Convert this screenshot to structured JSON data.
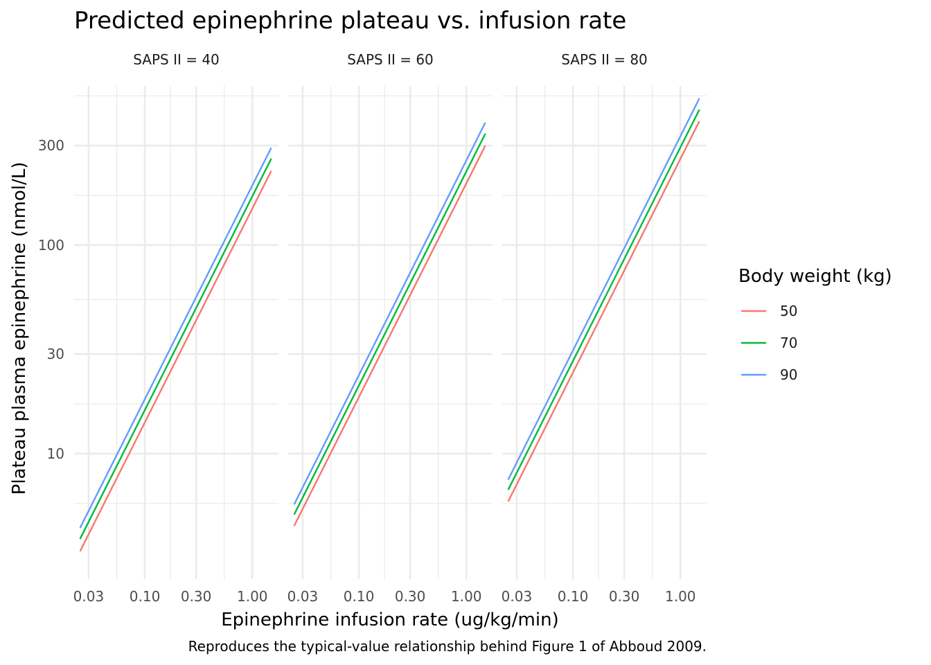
{
  "chart_data": {
    "type": "line",
    "title": "Predicted epinephrine plateau vs. infusion rate",
    "xlabel": "Epinephrine infusion rate (ug/kg/min)",
    "ylabel": "Plateau plasma epinephrine (nmol/L)",
    "caption": "Reproduces the typical-value relationship behind Figure 1 of Abboud 2009.",
    "x_scale": "log10",
    "y_scale": "log10",
    "xlim": [
      0.022,
      1.75
    ],
    "ylim": [
      2.5,
      580
    ],
    "x_ticks": [
      {
        "value": 0.03,
        "label": "0.03"
      },
      {
        "value": 0.1,
        "label": "0.10"
      },
      {
        "value": 0.3,
        "label": "0.30"
      },
      {
        "value": 1.0,
        "label": "1.00"
      }
    ],
    "y_ticks": [
      {
        "value": 10,
        "label": "10"
      },
      {
        "value": 30,
        "label": "30"
      },
      {
        "value": 100,
        "label": "100"
      },
      {
        "value": 300,
        "label": "300"
      }
    ],
    "grid": true,
    "legend": {
      "title": "Body weight (kg)",
      "position": "right",
      "entries": [
        {
          "label": "50",
          "color": "#F8766D"
        },
        {
          "label": "70",
          "color": "#00BA38"
        },
        {
          "label": "90",
          "color": "#619CFF"
        }
      ]
    },
    "panels": [
      {
        "strip": "SAPS II = 40",
        "series": [
          {
            "name": "50",
            "color": "#F8766D",
            "x": [
              0.025,
              1.5
            ],
            "y": [
              3.4,
              227
            ]
          },
          {
            "name": "70",
            "color": "#00BA38",
            "x": [
              0.025,
              1.5
            ],
            "y": [
              3.9,
              260
            ]
          },
          {
            "name": "90",
            "color": "#619CFF",
            "x": [
              0.025,
              1.5
            ],
            "y": [
              4.4,
              293
            ]
          }
        ]
      },
      {
        "strip": "SAPS II = 60",
        "series": [
          {
            "name": "50",
            "color": "#F8766D",
            "x": [
              0.025,
              1.5
            ],
            "y": [
              4.5,
              300
            ]
          },
          {
            "name": "70",
            "color": "#00BA38",
            "x": [
              0.025,
              1.5
            ],
            "y": [
              5.1,
              342
            ]
          },
          {
            "name": "90",
            "color": "#619CFF",
            "x": [
              0.025,
              1.5
            ],
            "y": [
              5.7,
              387
            ]
          }
        ]
      },
      {
        "strip": "SAPS II = 80",
        "series": [
          {
            "name": "50",
            "color": "#F8766D",
            "x": [
              0.025,
              1.5
            ],
            "y": [
              5.9,
              393
            ]
          },
          {
            "name": "70",
            "color": "#00BA38",
            "x": [
              0.025,
              1.5
            ],
            "y": [
              6.7,
              446
            ]
          },
          {
            "name": "90",
            "color": "#619CFF",
            "x": [
              0.025,
              1.5
            ],
            "y": [
              7.5,
              505
            ]
          }
        ]
      }
    ]
  }
}
